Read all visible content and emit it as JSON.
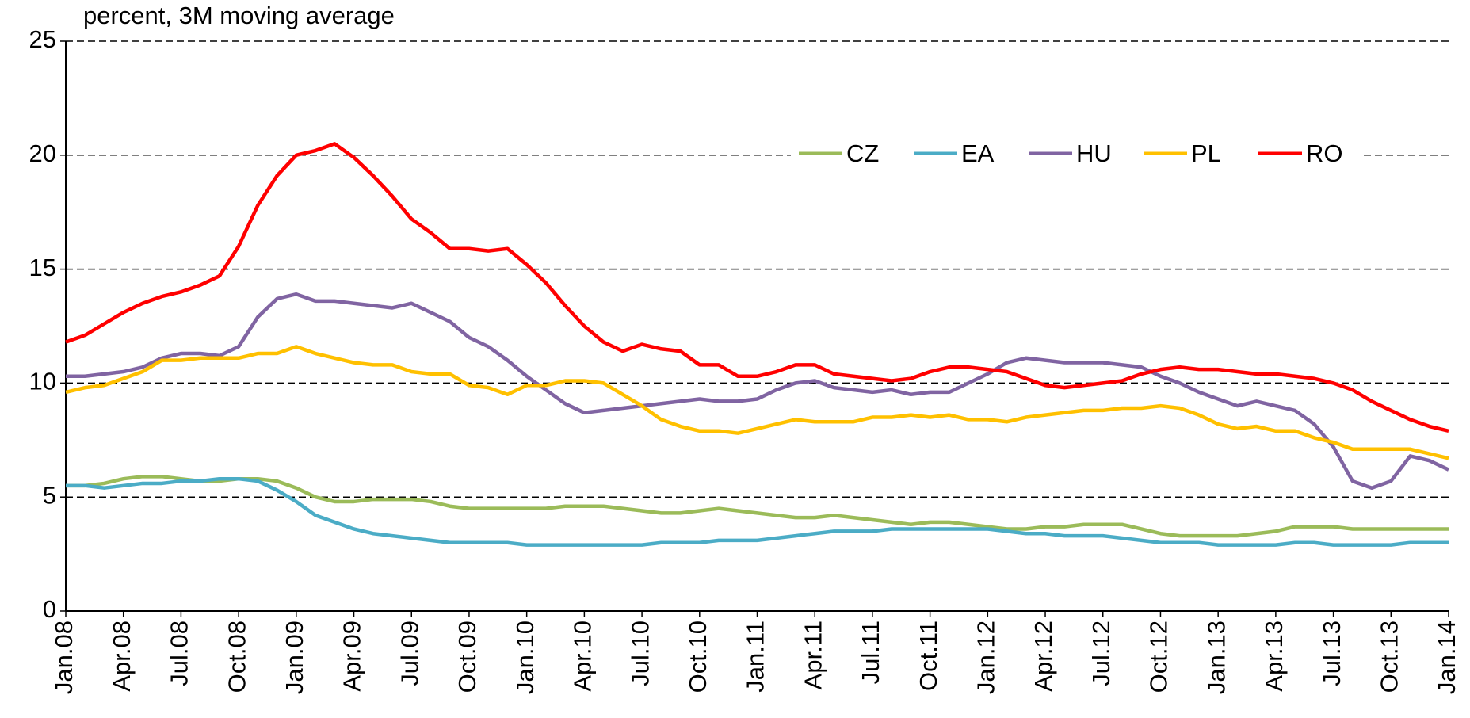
{
  "chart_data": {
    "type": "line",
    "subtitle": "percent, 3M moving average",
    "categories": [
      "Jan.08",
      null,
      null,
      "Apr.08",
      null,
      null,
      "Jul.08",
      null,
      null,
      "Oct.08",
      null,
      null,
      "Jan.09",
      null,
      null,
      "Apr.09",
      null,
      null,
      "Jul.09",
      null,
      null,
      "Oct.09",
      null,
      null,
      "Jan.10",
      null,
      null,
      "Apr.10",
      null,
      null,
      "Jul.10",
      null,
      null,
      "Oct.10",
      null,
      null,
      "Jan.11",
      null,
      null,
      "Apr.11",
      null,
      null,
      "Jul.11",
      null,
      null,
      "Oct.11",
      null,
      null,
      "Jan.12",
      null,
      null,
      "Apr.12",
      null,
      null,
      "Jul.12",
      null,
      null,
      "Oct.12",
      null,
      null,
      "Jan.13",
      null,
      null,
      "Apr.13",
      null,
      null,
      "Jul.13",
      null,
      null,
      "Oct.13",
      null,
      null,
      "Jan.14"
    ],
    "series": [
      {
        "name": "CZ",
        "color": "#9bbb59",
        "values": [
          5.5,
          5.5,
          5.6,
          5.8,
          5.9,
          5.9,
          5.8,
          5.7,
          5.7,
          5.8,
          5.8,
          5.7,
          5.4,
          5.0,
          4.8,
          4.8,
          4.9,
          4.9,
          4.9,
          4.8,
          4.6,
          4.5,
          4.5,
          4.5,
          4.5,
          4.5,
          4.6,
          4.6,
          4.6,
          4.5,
          4.4,
          4.3,
          4.3,
          4.4,
          4.5,
          4.4,
          4.3,
          4.2,
          4.1,
          4.1,
          4.2,
          4.1,
          4.0,
          3.9,
          3.8,
          3.9,
          3.9,
          3.8,
          3.7,
          3.6,
          3.6,
          3.7,
          3.7,
          3.8,
          3.8,
          3.8,
          3.6,
          3.4,
          3.3,
          3.3,
          3.3,
          3.3,
          3.4,
          3.5,
          3.7,
          3.7,
          3.7,
          3.6,
          3.6,
          3.6,
          3.6,
          3.6,
          3.6
        ]
      },
      {
        "name": "EA",
        "color": "#4bacc6",
        "values": [
          5.5,
          5.5,
          5.4,
          5.5,
          5.6,
          5.6,
          5.7,
          5.7,
          5.8,
          5.8,
          5.7,
          5.3,
          4.8,
          4.2,
          3.9,
          3.6,
          3.4,
          3.3,
          3.2,
          3.1,
          3.0,
          3.0,
          3.0,
          3.0,
          2.9,
          2.9,
          2.9,
          2.9,
          2.9,
          2.9,
          2.9,
          3.0,
          3.0,
          3.0,
          3.1,
          3.1,
          3.1,
          3.2,
          3.3,
          3.4,
          3.5,
          3.5,
          3.5,
          3.6,
          3.6,
          3.6,
          3.6,
          3.6,
          3.6,
          3.5,
          3.4,
          3.4,
          3.3,
          3.3,
          3.3,
          3.2,
          3.1,
          3.0,
          3.0,
          3.0,
          2.9,
          2.9,
          2.9,
          2.9,
          3.0,
          3.0,
          2.9,
          2.9,
          2.9,
          2.9,
          3.0,
          3.0,
          3.0
        ]
      },
      {
        "name": "HU",
        "color": "#8064a2",
        "values": [
          10.3,
          10.3,
          10.4,
          10.5,
          10.7,
          11.1,
          11.3,
          11.3,
          11.2,
          11.6,
          12.9,
          13.7,
          13.9,
          13.6,
          13.6,
          13.5,
          13.4,
          13.3,
          13.5,
          13.1,
          12.7,
          12.0,
          11.6,
          11.0,
          10.3,
          9.7,
          9.1,
          8.7,
          8.8,
          8.9,
          9.0,
          9.1,
          9.2,
          9.3,
          9.2,
          9.2,
          9.3,
          9.7,
          10.0,
          10.1,
          9.8,
          9.7,
          9.6,
          9.7,
          9.5,
          9.6,
          9.6,
          10.0,
          10.4,
          10.9,
          11.1,
          11.0,
          10.9,
          10.9,
          10.9,
          10.8,
          10.7,
          10.3,
          10.0,
          9.6,
          9.3,
          9.0,
          9.2,
          9.0,
          8.8,
          8.2,
          7.2,
          5.7,
          5.4,
          5.7,
          6.8,
          6.6,
          6.2
        ]
      },
      {
        "name": "PL",
        "color": "#ffc000",
        "values": [
          9.6,
          9.8,
          9.9,
          10.2,
          10.5,
          11.0,
          11.0,
          11.1,
          11.1,
          11.1,
          11.3,
          11.3,
          11.6,
          11.3,
          11.1,
          10.9,
          10.8,
          10.8,
          10.5,
          10.4,
          10.4,
          9.9,
          9.8,
          9.5,
          9.9,
          9.9,
          10.1,
          10.1,
          10.0,
          9.5,
          9.0,
          8.4,
          8.1,
          7.9,
          7.9,
          7.8,
          8.0,
          8.2,
          8.4,
          8.3,
          8.3,
          8.3,
          8.5,
          8.5,
          8.6,
          8.5,
          8.6,
          8.4,
          8.4,
          8.3,
          8.5,
          8.6,
          8.7,
          8.8,
          8.8,
          8.9,
          8.9,
          9.0,
          8.9,
          8.6,
          8.2,
          8.0,
          8.1,
          7.9,
          7.9,
          7.6,
          7.4,
          7.1,
          7.1,
          7.1,
          7.1,
          6.9,
          6.7
        ]
      },
      {
        "name": "RO",
        "color": "#ff0000",
        "values": [
          11.8,
          12.1,
          12.6,
          13.1,
          13.5,
          13.8,
          14.0,
          14.3,
          14.7,
          16.0,
          17.8,
          19.1,
          20.0,
          20.2,
          20.5,
          19.9,
          19.1,
          18.2,
          17.2,
          16.6,
          15.9,
          15.9,
          15.8,
          15.9,
          15.2,
          14.4,
          13.4,
          12.5,
          11.8,
          11.4,
          11.7,
          11.5,
          11.4,
          10.8,
          10.8,
          10.3,
          10.3,
          10.5,
          10.8,
          10.8,
          10.4,
          10.3,
          10.2,
          10.1,
          10.2,
          10.5,
          10.7,
          10.7,
          10.6,
          10.5,
          10.2,
          9.9,
          9.8,
          9.9,
          10.0,
          10.1,
          10.4,
          10.6,
          10.7,
          10.6,
          10.6,
          10.5,
          10.4,
          10.4,
          10.3,
          10.2,
          10.0,
          9.7,
          9.2,
          8.8,
          8.4,
          8.1,
          7.9
        ]
      }
    ],
    "ylim": [
      0,
      25
    ],
    "yticks": [
      0,
      5,
      10,
      15,
      20,
      25
    ],
    "grid": true,
    "legend": "top-right"
  }
}
